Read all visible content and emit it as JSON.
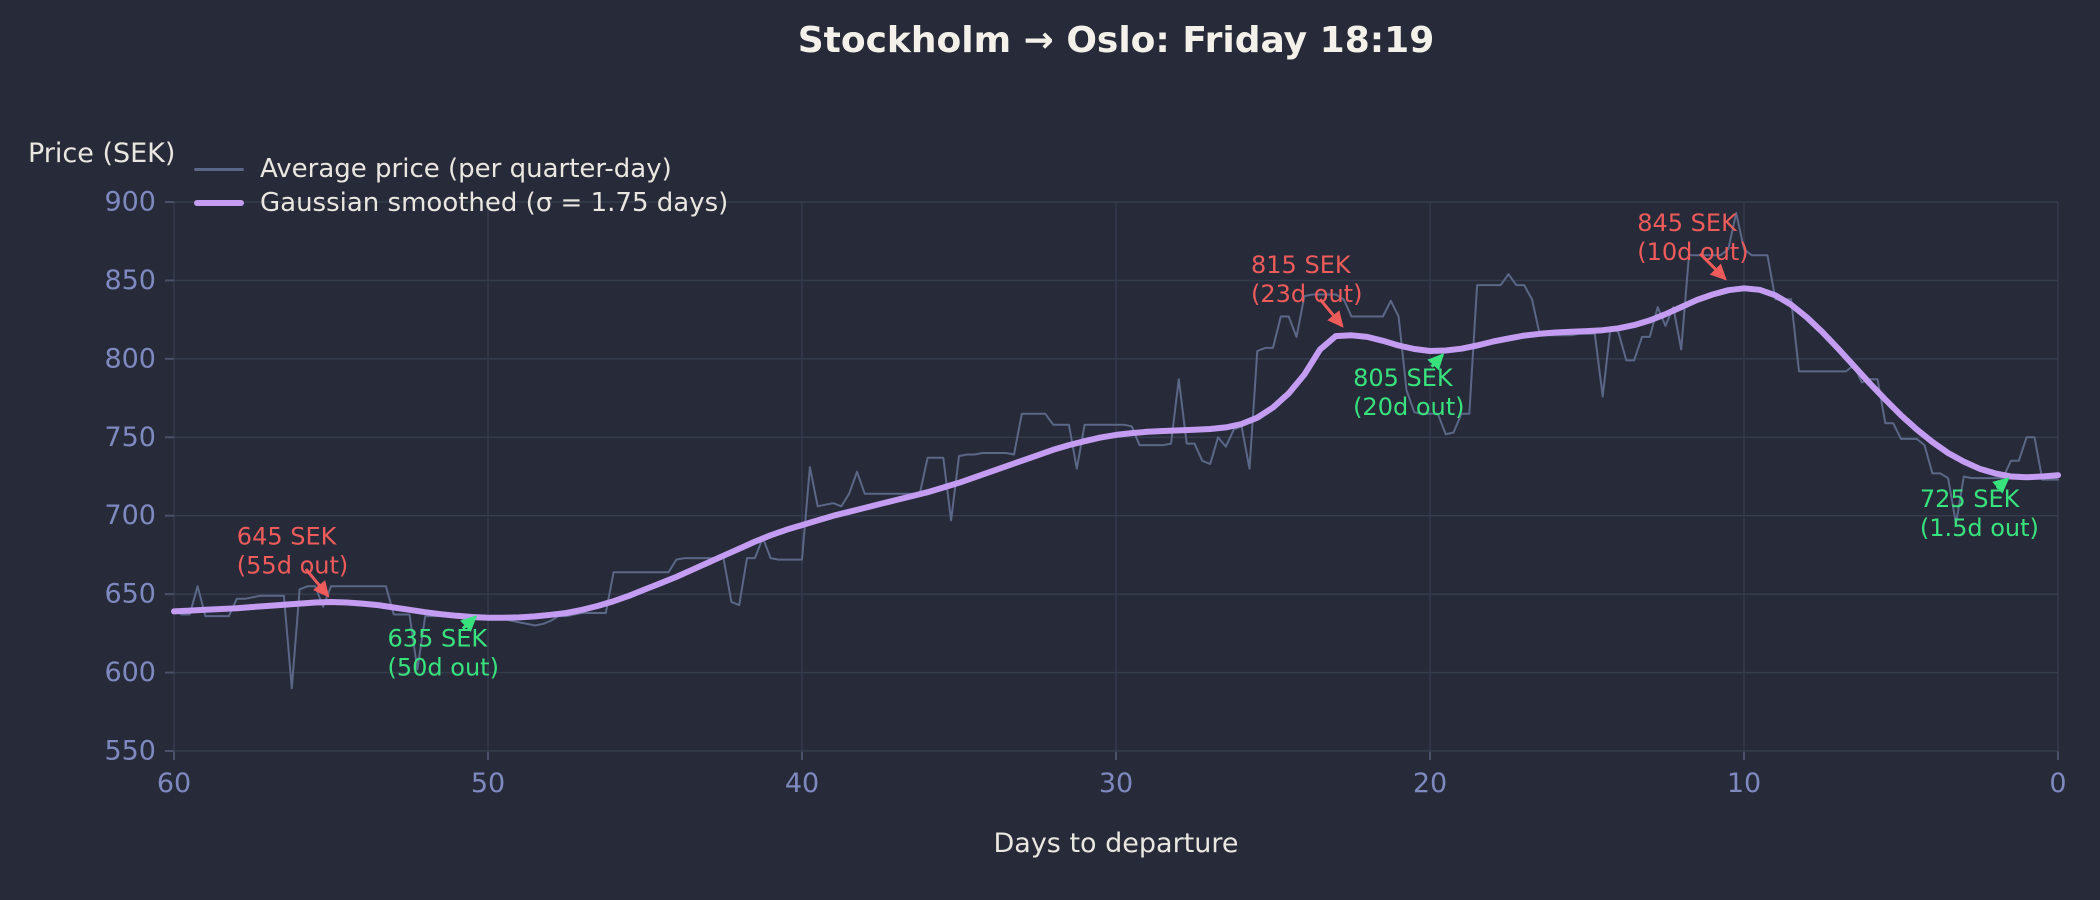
{
  "title": "Stockholm → Oslo: Friday 18:19",
  "y_axis": {
    "label": "Price (SEK)"
  },
  "x_axis": {
    "label": "Days to departure"
  },
  "legend": {
    "items": [
      {
        "label": "Average price (per quarter-day)",
        "series": "raw"
      },
      {
        "label": "Gaussian smoothed (σ = 1.75 days)",
        "series": "smoothed"
      }
    ]
  },
  "colors": {
    "background": "#272b39",
    "grid": "#353c4e",
    "tick_mark": "#4a5168",
    "tick_label": "#7e89c0",
    "text": "#e9e7e0",
    "title": "#f3f1ea",
    "raw": "#5b6787",
    "smoothed": "#c49df2",
    "max_annotation": "#ef5b5b",
    "min_annotation": "#38e27d"
  },
  "chart_data": {
    "type": "line",
    "title": "Stockholm → Oslo: Friday 18:19",
    "xlabel": "Days to departure",
    "ylabel": "Price (SEK)",
    "x_axis_reversed": true,
    "xlim": [
      60,
      0
    ],
    "ylim": [
      550,
      900
    ],
    "grid": true,
    "legend_position": "upper-left",
    "x_ticks": [
      60,
      50,
      40,
      30,
      20,
      10,
      0
    ],
    "y_ticks": [
      550,
      600,
      650,
      700,
      750,
      800,
      850,
      900
    ],
    "series": [
      {
        "name": "Average price (per quarter-day)",
        "color_key": "raw",
        "stroke_width": 2,
        "day_start": 60,
        "day_step": -0.25,
        "values": [
          640,
          637,
          637,
          655,
          636,
          636,
          636,
          636,
          647,
          647,
          648,
          649,
          649,
          649,
          649,
          590,
          653,
          655,
          655,
          642,
          655,
          655,
          655,
          655,
          655,
          655,
          655,
          655,
          637,
          637,
          637,
          602,
          636,
          636,
          636,
          636,
          636,
          634,
          634,
          634,
          634,
          634,
          634,
          633,
          632,
          631,
          630,
          631,
          633,
          636,
          636,
          637,
          638,
          638,
          638,
          638,
          664,
          664,
          664,
          664,
          664,
          664,
          664,
          664,
          672,
          673,
          673,
          673,
          673,
          673,
          673,
          645,
          643,
          673,
          673,
          686,
          673,
          672,
          672,
          672,
          672,
          731,
          706,
          707,
          708,
          706,
          714,
          728,
          714,
          714,
          714,
          714,
          714,
          714,
          714,
          714,
          737,
          737,
          737,
          697,
          738,
          739,
          739,
          740,
          740,
          740,
          740,
          739,
          765,
          765,
          765,
          765,
          758,
          758,
          758,
          730,
          758,
          758,
          758,
          758,
          758,
          758,
          757,
          745,
          745,
          745,
          745,
          746,
          787,
          746,
          746,
          735,
          733,
          750,
          744,
          755,
          757,
          730,
          805,
          807,
          807,
          827,
          827,
          814,
          840,
          841,
          841,
          841,
          841,
          838,
          827,
          827,
          827,
          827,
          827,
          837,
          827,
          780,
          766,
          765,
          765,
          765,
          752,
          753,
          765,
          765,
          847,
          847,
          847,
          847,
          854,
          847,
          847,
          838,
          815,
          815,
          815,
          815,
          815,
          816,
          816,
          816,
          776,
          820,
          817,
          799,
          799,
          814,
          814,
          833,
          821,
          833,
          806,
          866,
          866,
          866,
          866,
          866,
          870,
          893,
          870,
          866,
          866,
          866,
          838,
          838,
          838,
          792,
          792,
          792,
          792,
          792,
          792,
          792,
          796,
          785,
          787,
          787,
          759,
          759,
          749,
          749,
          749,
          745,
          727,
          727,
          724,
          695,
          725,
          724,
          724,
          724,
          724,
          724,
          735,
          735,
          750,
          750,
          723,
          723,
          723
        ]
      },
      {
        "name": "Gaussian smoothed (σ = 1.75 days)",
        "color_key": "smoothed",
        "stroke_width": 6,
        "day_start": 60,
        "day_step": -0.5,
        "values": [
          639,
          639.5,
          640,
          640.5,
          641,
          641.8,
          642.5,
          643.2,
          644,
          644.7,
          645,
          644.7,
          644,
          643,
          641.5,
          640,
          638.5,
          637.2,
          636.2,
          635.4,
          635,
          635,
          635.2,
          635.8,
          636.8,
          638,
          640,
          642.5,
          645.5,
          649,
          653,
          657,
          661,
          665.5,
          670,
          674.5,
          679,
          683.5,
          687.5,
          691,
          694,
          697,
          700,
          702.5,
          705,
          707.5,
          710,
          712.5,
          715,
          718,
          721,
          724.5,
          728,
          731.5,
          735,
          738.5,
          742,
          745,
          747.5,
          749.8,
          751.5,
          752.7,
          753.5,
          754,
          754.4,
          754.8,
          755.3,
          756.3,
          758.5,
          762.5,
          769,
          778,
          790,
          806,
          814.5,
          815,
          814,
          811.5,
          808.5,
          806.3,
          805,
          805.3,
          806.5,
          808.5,
          811,
          813,
          814.8,
          816,
          816.8,
          817.3,
          817.7,
          818.3,
          819.5,
          821.5,
          824.5,
          828.5,
          833,
          837.5,
          841,
          843.8,
          845,
          844,
          840.5,
          834.5,
          826.5,
          817,
          806.5,
          795.5,
          784.5,
          774,
          764,
          755,
          747,
          740,
          734.5,
          730,
          727,
          725,
          724.5,
          725,
          725.8
        ]
      }
    ],
    "annotations": [
      {
        "kind": "max",
        "lines": [
          "645 SEK",
          "(55d out)"
        ],
        "value_sek": 645,
        "days_out": "55d",
        "text_day": 58.0,
        "text_top_sek": 695,
        "arrow_start": [
          55.8,
          666
        ],
        "arrow_end": [
          55.1,
          649
        ]
      },
      {
        "kind": "min",
        "lines": [
          "635 SEK",
          "(50d out)"
        ],
        "value_sek": 635,
        "days_out": "50d",
        "text_day": 53.2,
        "text_top_sek": 630,
        "arrow_start": [
          50.8,
          628
        ],
        "arrow_end": [
          50.4,
          635.5
        ]
      },
      {
        "kind": "max",
        "lines": [
          "815 SEK",
          "(23d out)"
        ],
        "value_sek": 815,
        "days_out": "23d",
        "text_day": 25.7,
        "text_top_sek": 868,
        "arrow_start": [
          23.5,
          838
        ],
        "arrow_end": [
          22.8,
          821
        ]
      },
      {
        "kind": "min",
        "lines": [
          "805 SEK",
          "(20d out)"
        ],
        "value_sek": 805,
        "days_out": "20d",
        "text_day": 22.45,
        "text_top_sek": 796,
        "arrow_start": [
          19.95,
          795
        ],
        "arrow_end": [
          19.6,
          802.5
        ]
      },
      {
        "kind": "max",
        "lines": [
          "845 SEK",
          "(10d out)"
        ],
        "value_sek": 845,
        "days_out": "10d",
        "text_day": 13.4,
        "text_top_sek": 895,
        "arrow_start": [
          11.4,
          867
        ],
        "arrow_end": [
          10.6,
          851
        ]
      },
      {
        "kind": "min",
        "lines": [
          "725 SEK",
          "(1.5d out)"
        ],
        "value_sek": 725,
        "days_out": "1.5d",
        "text_day": 4.4,
        "text_top_sek": 719,
        "arrow_start": [
          1.95,
          717.5
        ],
        "arrow_end": [
          1.6,
          723.5
        ]
      }
    ]
  }
}
